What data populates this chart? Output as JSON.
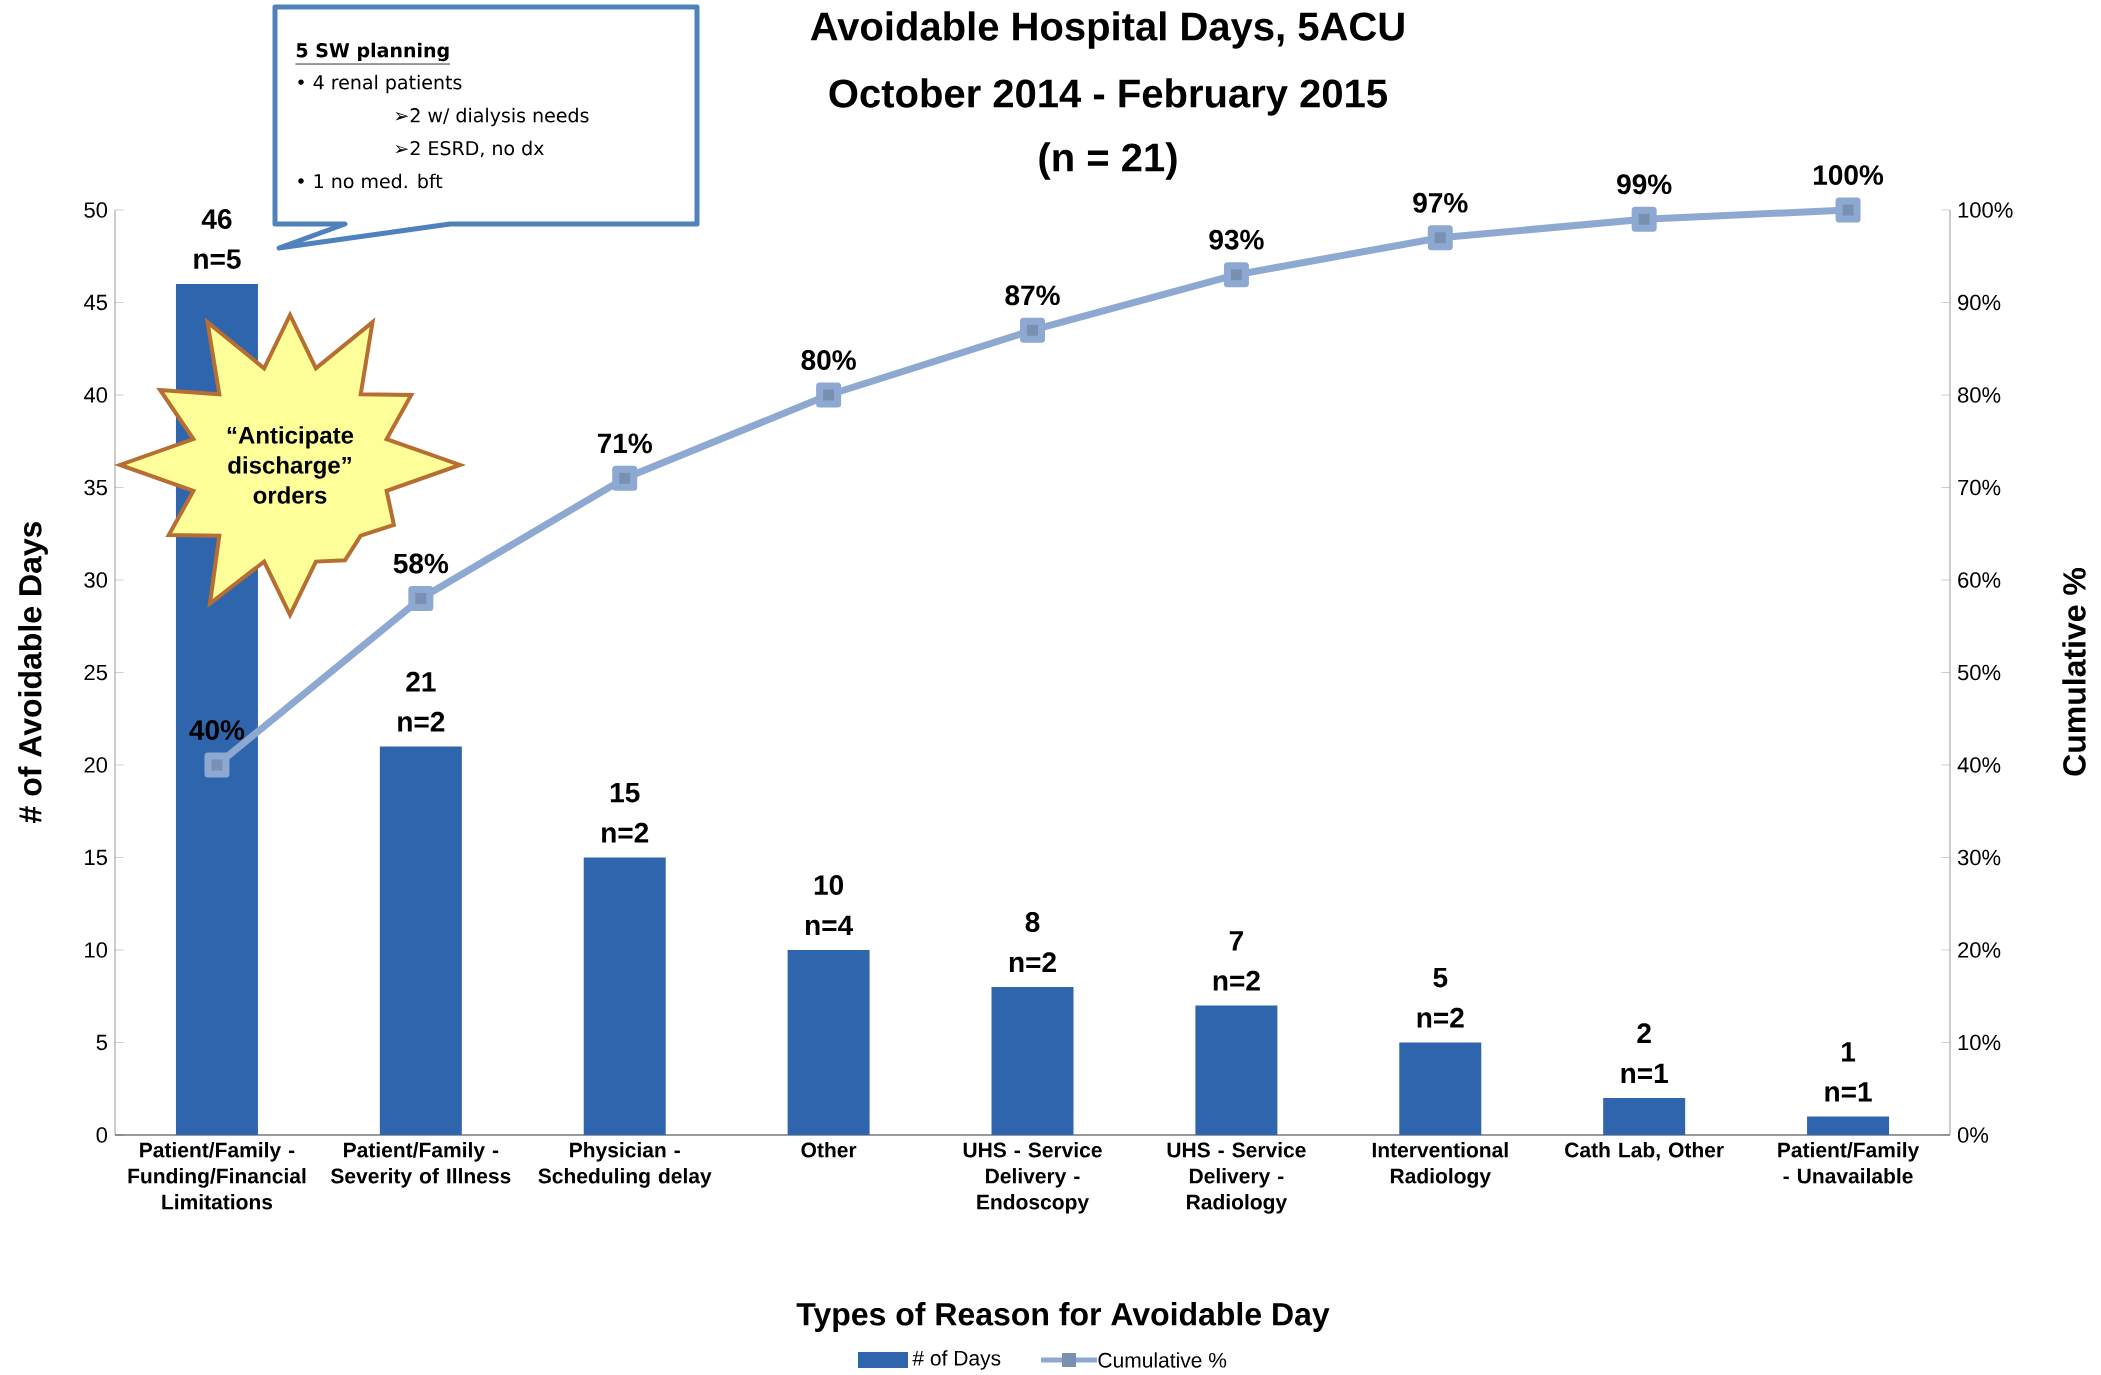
{
  "chart_data": {
    "type": "bar",
    "title": "Avoidable Hospital Days, 5ACU",
    "subtitle": "October 2014 - February 2015",
    "xlabel": "Types of Reason for Avoidable Day",
    "ylabel": "# of Avoidable Days",
    "y2label": "Cumulative %",
    "categories": [
      "Patient/Family - Funding/Financial Limitations",
      "Patient/Family - Severity of Illness",
      "Physician - Scheduling delay",
      "Other",
      "UHS - Service Delivery - Endoscopy",
      "UHS - Service Delivery - Radiology",
      "Interventional Radiology",
      "Cath Lab, Other",
      "Patient/Family - Unavailable"
    ],
    "series": [
      {
        "name": "# of Days",
        "type": "bar",
        "color": "#2f65ad",
        "values": [
          46,
          21,
          15,
          10,
          8,
          7,
          5,
          2,
          1
        ],
        "value_labels": [
          "46",
          "21",
          "15",
          "10",
          "8",
          "7",
          "5",
          "2",
          "1"
        ]
      },
      {
        "name": "Cumulative %",
        "type": "line",
        "axis": "y2",
        "color": "#8ea9d1",
        "marker": "square",
        "line_style": "solid",
        "values": [
          40,
          58,
          71,
          80,
          87,
          93,
          97,
          99,
          100
        ],
        "value_labels": [
          "40%",
          "58%",
          "71%",
          "80%",
          "87%",
          "93%",
          "97%",
          "99%",
          "100%"
        ]
      }
    ],
    "ylim": [
      0,
      50
    ],
    "yticks": [
      0,
      5,
      10,
      15,
      20,
      25,
      30,
      35,
      40,
      45,
      50
    ],
    "y2lim": [
      0,
      100
    ],
    "y2ticks": [
      {
        "value": 0,
        "label": "0%"
      },
      {
        "value": 10,
        "label": "10%"
      },
      {
        "value": 20,
        "label": "20%"
      },
      {
        "value": 30,
        "label": "30%"
      },
      {
        "value": 40,
        "label": "40%"
      },
      {
        "value": 50,
        "label": "50%"
      },
      {
        "value": 60,
        "label": "60%"
      },
      {
        "value": 70,
        "label": "70%"
      },
      {
        "value": 80,
        "label": "80%"
      },
      {
        "value": 90,
        "label": "90%"
      },
      {
        "value": 100,
        "label": "100%"
      }
    ],
    "grid": false,
    "legend": "bottom",
    "annotations": [
      "(n = 21)",
      "5 SW planning",
      "• 4 renal patients",
      "➢2 w/ dialysis needs",
      "➢2 ESRD, no dx",
      "• 1 no med. bft",
      "“Anticipate discharge” orders",
      {
        "text": "n=5",
        "x": "Patient/Family - Funding/Financial Limitations",
        "y": 46
      },
      {
        "text": "n=2",
        "x": "Patient/Family - Severity of Illness",
        "y": 21
      },
      {
        "text": "n=2",
        "x": "Physician - Scheduling delay",
        "y": 15
      },
      {
        "text": "n=4",
        "x": "Other",
        "y": 10
      },
      {
        "text": "n=2",
        "x": "UHS - Service Delivery - Endoscopy",
        "y": 8
      },
      {
        "text": "n=2",
        "x": "UHS - Service Delivery - Radiology",
        "y": 7
      },
      {
        "text": "n=2",
        "x": "Interventional Radiology",
        "y": 5
      },
      {
        "text": "n=1",
        "x": "Cath Lab, Other",
        "y": 2
      },
      {
        "text": "n=1",
        "x": "Patient/Family - Unavailable",
        "y": 1
      }
    ]
  }
}
